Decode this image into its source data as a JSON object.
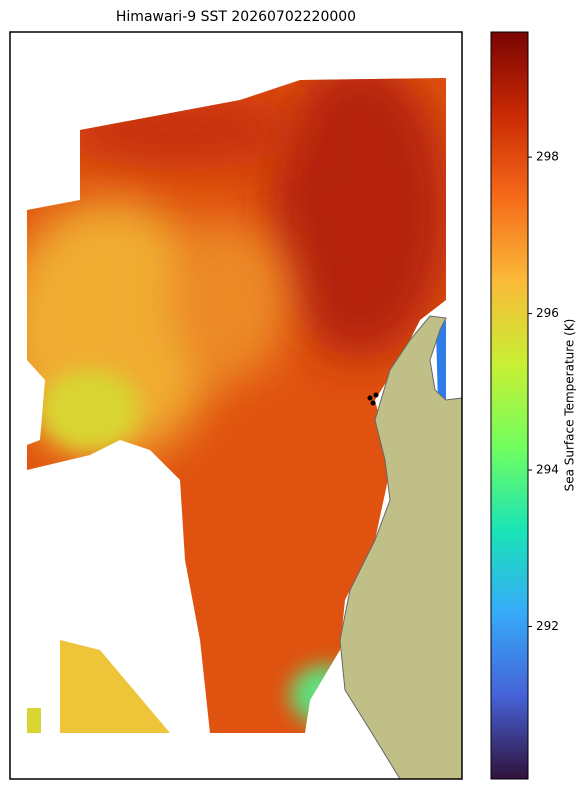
{
  "chart_data": {
    "type": "map",
    "title": "Himawari-9 SST 20260702220000",
    "colorbar": {
      "label": "Sea Surface Temperature (K)",
      "lim": [
        290.05,
        299.6
      ],
      "ticks": [
        292,
        294,
        296,
        298
      ],
      "cmap": "turbo"
    }
  }
}
